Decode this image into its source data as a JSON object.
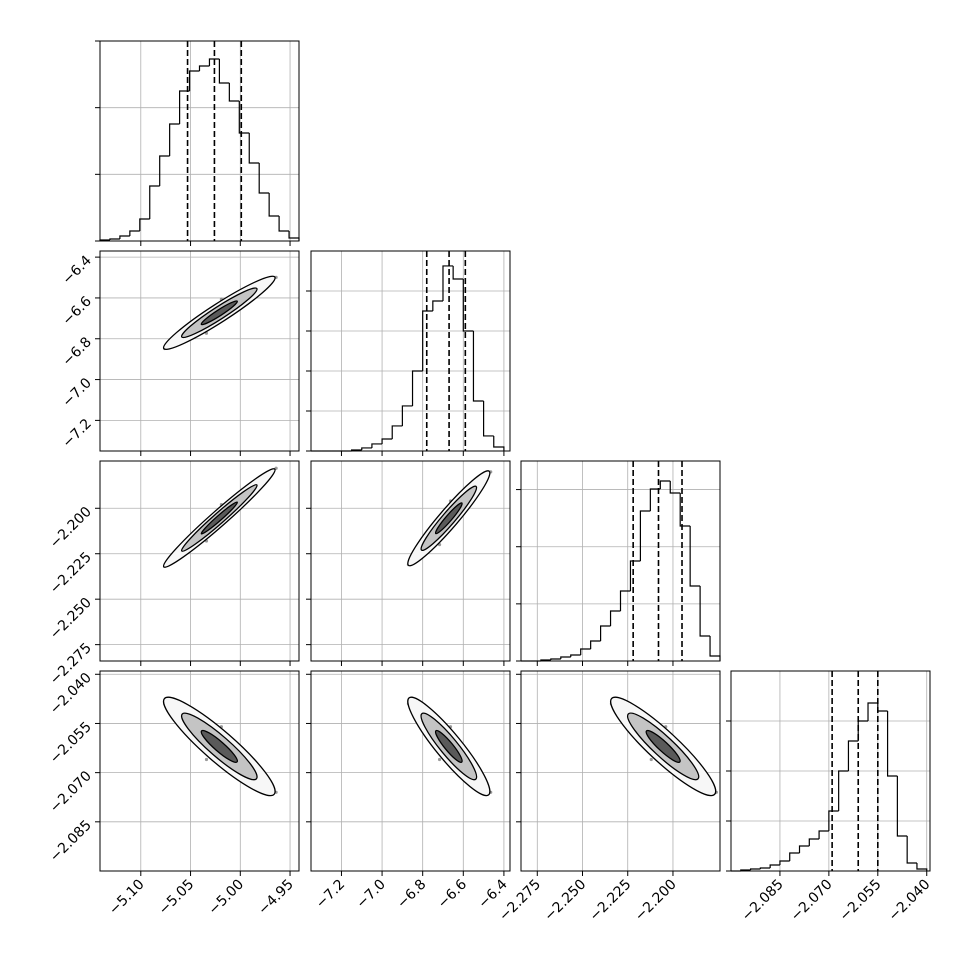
{
  "chart_data": {
    "type": "corner",
    "params": [
      {
        "lim": [
          -5.141,
          -4.941
        ],
        "ticks": [
          {
            "value": -5.1,
            "label": "−5.10"
          },
          {
            "value": -5.05,
            "label": "−5.05"
          },
          {
            "value": -5,
            "label": "−5.00"
          },
          {
            "value": -4.95,
            "label": "−4.95"
          }
        ]
      },
      {
        "lim": [
          -7.35,
          -6.37
        ],
        "ticks": [
          {
            "value": -7.2,
            "label": "−7.2"
          },
          {
            "value": -7,
            "label": "−7.0"
          },
          {
            "value": -6.8,
            "label": "−6.8"
          },
          {
            "value": -6.6,
            "label": "−6.6"
          },
          {
            "value": -6.4,
            "label": "−6.4"
          }
        ]
      },
      {
        "lim": [
          -2.284,
          -2.174
        ],
        "ticks": [
          {
            "value": -2.275,
            "label": "−2.275"
          },
          {
            "value": -2.25,
            "label": "−2.250"
          },
          {
            "value": -2.225,
            "label": "−2.225"
          },
          {
            "value": -2.2,
            "label": "−2.200"
          }
        ]
      },
      {
        "lim": [
          -2.1,
          -2.039
        ],
        "ticks": [
          {
            "value": -2.085,
            "label": "−2.085"
          },
          {
            "value": -2.07,
            "label": "−2.070"
          },
          {
            "value": -2.055,
            "label": "−2.055"
          },
          {
            "value": -2.04,
            "label": "−2.040"
          }
        ]
      }
    ],
    "histograms": [
      {
        "bins": [
          -5.141,
          -5.131,
          -5.121,
          -5.111,
          -5.101,
          -5.091,
          -5.081,
          -5.071,
          -5.061,
          -5.051,
          -5.041,
          -5.031,
          -5.021,
          -5.011,
          -5.001,
          -4.991,
          -4.981,
          -4.971,
          -4.961,
          -4.951,
          -4.941
        ],
        "counts": [
          15,
          30,
          75,
          150,
          330,
          825,
          1275,
          1755,
          2250,
          2550,
          2625,
          2730,
          2370,
          2100,
          1620,
          1170,
          720,
          375,
          150,
          45
        ],
        "ylim": [
          0,
          3000
        ],
        "yticks": [
          0,
          1000,
          2000,
          3000
        ],
        "quantiles": [
          -5.053,
          -5.026,
          -4.999
        ]
      },
      {
        "bins": [
          -7.35,
          -7.3,
          -7.25,
          -7.2,
          -7.15,
          -7.1,
          -7.05,
          -7,
          -6.95,
          -6.9,
          -6.85,
          -6.8,
          -6.75,
          -6.7,
          -6.65,
          -6.6,
          -6.55,
          -6.5,
          -6.45,
          -6.4
        ],
        "counts": [
          0,
          0,
          0,
          0,
          13,
          38,
          88,
          150,
          313,
          563,
          1000,
          1750,
          1875,
          2313,
          2150,
          1500,
          625,
          188,
          50
        ],
        "ylim": [
          0,
          2500
        ],
        "yticks": [
          0,
          500,
          1000,
          1500,
          2000
        ],
        "quantiles": [
          -6.78,
          -6.67,
          -6.59
        ]
      },
      {
        "bins": [
          -2.284,
          -2.2785,
          -2.273,
          -2.2675,
          -2.262,
          -2.2565,
          -2.251,
          -2.2455,
          -2.24,
          -2.2345,
          -2.229,
          -2.2235,
          -2.218,
          -2.2125,
          -2.207,
          -2.2015,
          -2.196,
          -2.1905,
          -2.185,
          -2.1795,
          -2.174
        ],
        "counts": [
          0,
          0,
          18,
          35,
          70,
          105,
          210,
          350,
          613,
          875,
          1225,
          1750,
          2625,
          3010,
          3150,
          2940,
          2363,
          1313,
          438,
          88
        ],
        "ylim": [
          0,
          3500
        ],
        "yticks": [
          0,
          1000,
          2000,
          3000
        ],
        "quantiles": [
          -2.222,
          -2.208,
          -2.195
        ]
      },
      {
        "bins": [
          -2.1,
          -2.097,
          -2.094,
          -2.091,
          -2.088,
          -2.085,
          -2.082,
          -2.079,
          -2.076,
          -2.073,
          -2.07,
          -2.067,
          -2.064,
          -2.061,
          -2.058,
          -2.055,
          -2.052,
          -2.049,
          -2.046,
          -2.043,
          -2.04
        ],
        "counts": [
          0,
          20,
          40,
          60,
          120,
          200,
          360,
          500,
          640,
          800,
          1200,
          2000,
          2600,
          3000,
          3360,
          3200,
          1900,
          700,
          160,
          40
        ],
        "ylim": [
          0,
          4000
        ],
        "yticks": [
          0,
          1000,
          2000,
          3000
        ],
        "quantiles": [
          -2.069,
          -2.061,
          -2.055
        ]
      }
    ],
    "scatters": [
      [
        {
          "x": [
            -5.026,
            -5.001,
            -5.051,
            -4.976,
            -5.076,
            -5.014,
            -5.039,
            -4.989,
            -5.064,
            -5.019,
            -5.034,
            -4.964
          ],
          "y": [
            -6.69,
            -6.597,
            -6.779,
            -6.52,
            -6.848,
            -6.689,
            -6.691,
            -6.6,
            -6.78,
            -6.607,
            -6.773,
            -6.499
          ]
        }
      ],
      [
        {
          "x": [
            -5.026,
            -5.001,
            -5.051,
            -4.976,
            -5.076,
            -5.014,
            -5.039,
            -4.989,
            -5.064,
            -5.019,
            -5.034,
            -4.964
          ],
          "y": [
            -2.208,
            -2.194,
            -2.221,
            -2.183,
            -2.232,
            -2.206,
            -2.21,
            -2.193,
            -2.223,
            -2.198,
            -2.218,
            -2.178
          ]
        },
        {
          "x": [
            -6.69,
            -6.6,
            -6.78,
            -6.51,
            -6.87,
            -6.645,
            -6.735,
            -6.555,
            -6.825,
            -6.663,
            -6.717,
            -6.465
          ],
          "y": [
            -2.208,
            -2.195,
            -2.221,
            -2.183,
            -2.231,
            -2.208,
            -2.208,
            -2.195,
            -2.221,
            -2.196,
            -2.22,
            -2.18
          ]
        }
      ],
      [
        {
          "x": [
            -5.026,
            -5.001,
            -5.051,
            -4.976,
            -5.076,
            -5.014,
            -5.039,
            -4.989,
            -5.064,
            -5.019,
            -5.034,
            -4.964
          ],
          "y": [
            -2.061,
            -2.065,
            -2.056,
            -2.071,
            -2.049,
            -2.068,
            -2.054,
            -2.073,
            -2.049,
            -2.056,
            -2.066,
            -2.076
          ]
        },
        {
          "x": [
            -6.69,
            -6.6,
            -6.78,
            -6.51,
            -6.87,
            -6.645,
            -6.735,
            -6.555,
            -6.825,
            -6.663,
            -6.717,
            -6.465
          ],
          "y": [
            -2.061,
            -2.065,
            -2.056,
            -2.071,
            -2.049,
            -2.068,
            -2.054,
            -2.073,
            -2.049,
            -2.056,
            -2.066,
            -2.076
          ]
        },
        {
          "x": [
            -2.208,
            -2.195,
            -2.221,
            -2.182,
            -2.234,
            -2.202,
            -2.214,
            -2.189,
            -2.228,
            -2.204,
            -2.212,
            -2.176
          ],
          "y": [
            -2.061,
            -2.065,
            -2.056,
            -2.071,
            -2.049,
            -2.068,
            -2.054,
            -2.073,
            -2.049,
            -2.056,
            -2.066,
            -2.076
          ]
        }
      ]
    ]
  }
}
